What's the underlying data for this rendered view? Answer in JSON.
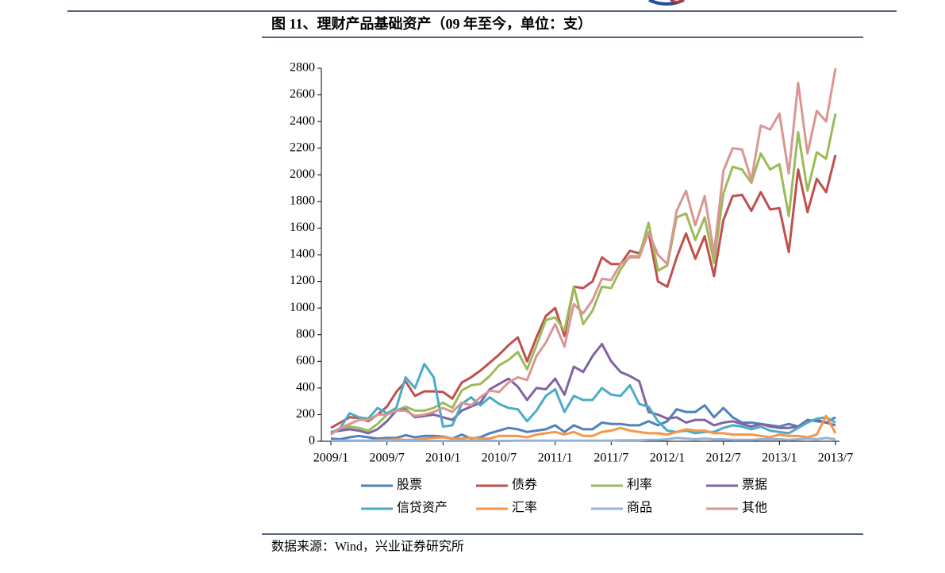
{
  "chart_data": {
    "type": "line",
    "title": "图 11、理财产品基础资产（09 年至今，单位：支）",
    "categories": [
      "2009/1",
      null,
      null,
      null,
      null,
      null,
      "2009/7",
      null,
      null,
      null,
      null,
      null,
      "2010/1",
      null,
      null,
      null,
      null,
      null,
      "2010/7",
      null,
      null,
      null,
      null,
      null,
      "2011/1",
      null,
      null,
      null,
      null,
      null,
      "2011/7",
      null,
      null,
      null,
      null,
      null,
      "2012/1",
      null,
      null,
      null,
      null,
      null,
      "2012/7",
      null,
      null,
      null,
      null,
      null,
      "2013/1",
      null,
      null,
      null,
      null,
      null,
      "2013/7"
    ],
    "ylim": [
      0,
      2800
    ],
    "yticks": [
      0,
      200,
      400,
      600,
      800,
      1000,
      1200,
      1400,
      1600,
      1800,
      2000,
      2200,
      2400,
      2600,
      2800
    ],
    "grid": false,
    "legend": "bottom",
    "series": [
      {
        "name": "股票",
        "color": "#4f81bd",
        "values": [
          20,
          15,
          30,
          40,
          30,
          20,
          25,
          25,
          45,
          30,
          40,
          40,
          35,
          20,
          50,
          20,
          30,
          60,
          80,
          100,
          90,
          70,
          80,
          90,
          120,
          70,
          120,
          90,
          90,
          140,
          130,
          130,
          120,
          120,
          150,
          120,
          150,
          240,
          220,
          220,
          270,
          180,
          250,
          180,
          140,
          140,
          130,
          120,
          110,
          130,
          110,
          160,
          150,
          140,
          180
        ]
      },
      {
        "name": "债券",
        "color": "#c0504d",
        "values": [
          100,
          140,
          180,
          175,
          150,
          200,
          260,
          370,
          450,
          340,
          375,
          375,
          370,
          320,
          440,
          480,
          530,
          590,
          650,
          720,
          780,
          600,
          780,
          940,
          1000,
          790,
          1160,
          1150,
          1200,
          1380,
          1330,
          1330,
          1430,
          1410,
          1570,
          1200,
          1160,
          1380,
          1560,
          1370,
          1540,
          1240,
          1660,
          1840,
          1850,
          1730,
          1870,
          1740,
          1750,
          1420,
          2040,
          1720,
          1970,
          1870,
          2150
        ]
      },
      {
        "name": "利率",
        "color": "#9bbb59",
        "values": [
          60,
          90,
          110,
          100,
          80,
          130,
          200,
          230,
          260,
          230,
          230,
          250,
          290,
          250,
          380,
          420,
          430,
          490,
          570,
          610,
          670,
          540,
          720,
          910,
          930,
          830,
          1160,
          880,
          980,
          1160,
          1150,
          1290,
          1390,
          1390,
          1640,
          1280,
          1320,
          1680,
          1710,
          1510,
          1680,
          1340,
          1860,
          2060,
          2040,
          1940,
          2160,
          2040,
          2080,
          1690,
          2320,
          1880,
          2170,
          2120,
          2460
        ]
      },
      {
        "name": "票据",
        "color": "#8064a2",
        "values": [
          70,
          80,
          90,
          80,
          60,
          90,
          150,
          230,
          240,
          180,
          190,
          200,
          180,
          160,
          230,
          260,
          290,
          390,
          430,
          470,
          410,
          310,
          400,
          390,
          470,
          350,
          560,
          520,
          640,
          730,
          600,
          520,
          490,
          450,
          220,
          200,
          170,
          180,
          140,
          160,
          160,
          120,
          140,
          150,
          130,
          110,
          130,
          110,
          100,
          100,
          110,
          150,
          160,
          140,
          120
        ]
      },
      {
        "name": "信贷资产",
        "color": "#4bacc6",
        "values": [
          60,
          100,
          210,
          180,
          170,
          250,
          210,
          250,
          480,
          400,
          580,
          480,
          110,
          120,
          280,
          330,
          270,
          330,
          280,
          250,
          240,
          150,
          230,
          340,
          390,
          220,
          340,
          310,
          310,
          400,
          350,
          340,
          420,
          280,
          260,
          150,
          80,
          70,
          80,
          60,
          70,
          70,
          100,
          120,
          110,
          90,
          110,
          80,
          70,
          60,
          100,
          140,
          170,
          180,
          140
        ]
      },
      {
        "name": "汇率",
        "color": "#f79646",
        "values": [
          5,
          5,
          5,
          5,
          5,
          10,
          10,
          15,
          10,
          10,
          20,
          25,
          30,
          20,
          20,
          25,
          20,
          20,
          40,
          40,
          40,
          30,
          50,
          60,
          70,
          50,
          70,
          40,
          40,
          70,
          80,
          100,
          80,
          70,
          60,
          60,
          50,
          70,
          90,
          80,
          80,
          60,
          60,
          50,
          50,
          50,
          40,
          30,
          50,
          40,
          40,
          30,
          50,
          190,
          60
        ]
      },
      {
        "name": "商品",
        "color": "#95b3d7",
        "values": [
          3,
          3,
          3,
          3,
          3,
          3,
          3,
          3,
          3,
          3,
          3,
          3,
          3,
          3,
          3,
          3,
          3,
          3,
          3,
          3,
          5,
          5,
          5,
          5,
          5,
          5,
          5,
          5,
          5,
          5,
          5,
          8,
          8,
          8,
          10,
          10,
          15,
          25,
          20,
          15,
          20,
          15,
          15,
          10,
          10,
          10,
          15,
          15,
          15,
          10,
          15,
          20,
          15,
          25,
          15
        ]
      },
      {
        "name": "其他",
        "color": "#d99694",
        "values": [
          50,
          100,
          130,
          160,
          160,
          200,
          200,
          230,
          230,
          190,
          200,
          220,
          250,
          220,
          290,
          270,
          330,
          380,
          370,
          440,
          480,
          460,
          640,
          740,
          880,
          710,
          1030,
          960,
          1060,
          1220,
          1210,
          1330,
          1380,
          1380,
          1570,
          1400,
          1330,
          1730,
          1880,
          1620,
          1840,
          1410,
          2030,
          2200,
          2190,
          1960,
          2370,
          2340,
          2460,
          2010,
          2690,
          2160,
          2480,
          2400,
          2800
        ]
      }
    ]
  },
  "source": "数据来源：Wind，兴业证券研究所"
}
